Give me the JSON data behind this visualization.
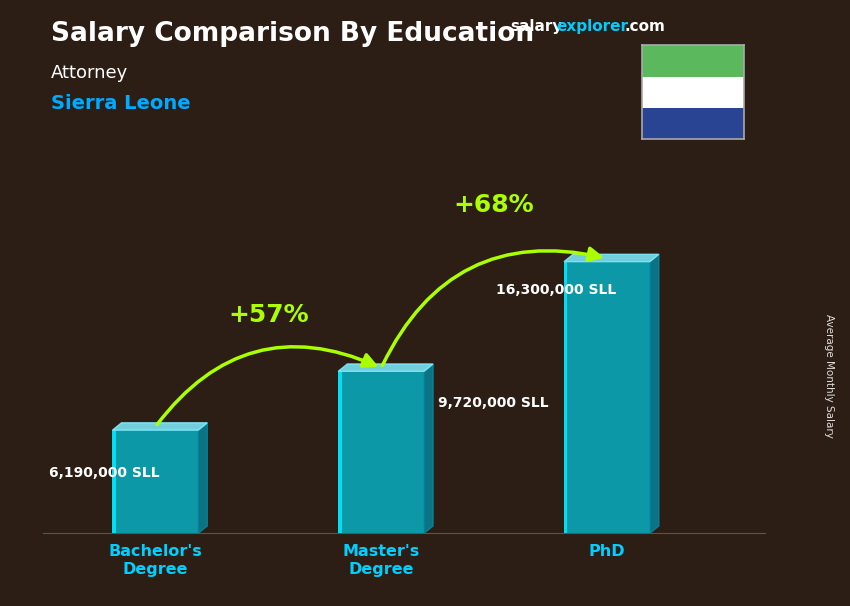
{
  "title": "Salary Comparison By Education",
  "subtitle_job": "Attorney",
  "subtitle_country": "Sierra Leone",
  "watermark_salary": "salary",
  "watermark_explorer": "explorer",
  "watermark_com": ".com",
  "ylabel_rotated": "Average Monthly Salary",
  "categories": [
    "Bachelor's\nDegree",
    "Master's\nDegree",
    "PhD"
  ],
  "values": [
    6190000,
    9720000,
    16300000
  ],
  "value_labels": [
    "6,190,000 SLL",
    "9,720,000 SLL",
    "16,300,000 SLL"
  ],
  "pct_labels": [
    "+57%",
    "+68%"
  ],
  "bar_face_color": "#00c8e0",
  "bar_alpha": 0.72,
  "bar_edge_color": "#00e5ff",
  "bar_top_color": "#80eeff",
  "bar_side_color": "#0090aa",
  "bg_color": "#2c1e14",
  "title_color": "#ffffff",
  "job_color": "#ffffff",
  "country_color": "#00aaff",
  "value_label_color": "#ffffff",
  "pct_color": "#aaff00",
  "arrow_color": "#aaff00",
  "flag_green": "#5cb85c",
  "flag_white": "#ffffff",
  "flag_blue": "#2a4494",
  "watermark_color1": "#ffffff",
  "watermark_color2": "#00ccff",
  "ylim": [
    0,
    20000000
  ],
  "bar_width": 0.38,
  "bar_positions": [
    0.5,
    1.5,
    2.5
  ],
  "xlim": [
    0,
    3.2
  ]
}
